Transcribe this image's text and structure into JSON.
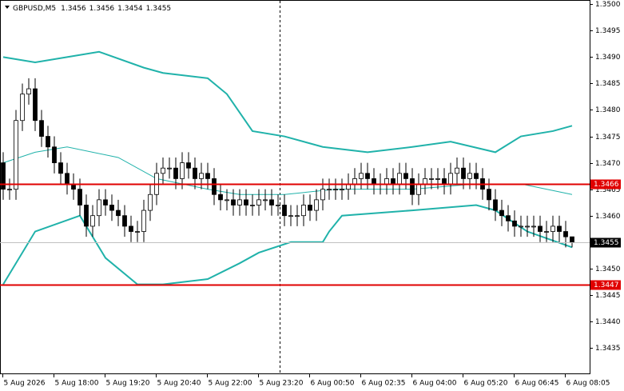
{
  "chart_data": {
    "type": "candlestick",
    "symbol": "GBPUSD,M5",
    "categories": [
      "5 Aug 2026",
      null,
      null,
      null,
      null,
      null,
      null,
      null,
      "5 Aug 18:00",
      null,
      null,
      null,
      null,
      null,
      null,
      null,
      "5 Aug 19:20",
      null,
      null,
      null,
      null,
      null,
      null,
      null,
      "5 Aug 20:40",
      null,
      null,
      null,
      null,
      null,
      null,
      null,
      "5 Aug 22:00",
      null,
      null,
      null,
      null,
      null,
      null,
      null,
      "5 Aug 23:20",
      null,
      null,
      null,
      null,
      null,
      null,
      null,
      "6 Aug 00:50",
      null,
      null,
      null,
      null,
      null,
      null,
      null,
      "6 Aug 02:35",
      null,
      null,
      null,
      null,
      null,
      null,
      null,
      "6 Aug 04:00",
      null,
      null,
      null,
      null,
      null,
      null,
      null,
      "6 Aug 05:20",
      null,
      null,
      null,
      null,
      null,
      null,
      null,
      "6 Aug 06:45",
      null,
      null,
      null,
      null,
      null,
      null,
      null,
      "6 Aug 08:05",
      null
    ],
    "ohlc": [
      [
        1.347,
        1.3472,
        1.3463,
        1.3465
      ],
      [
        1.3465,
        1.3467,
        1.3463,
        1.3465
      ],
      [
        1.3465,
        1.348,
        1.3463,
        1.3478
      ],
      [
        1.3478,
        1.3485,
        1.3476,
        1.3483
      ],
      [
        1.3483,
        1.3486,
        1.3481,
        1.3484
      ],
      [
        1.3484,
        1.3486,
        1.3476,
        1.3478
      ],
      [
        1.3478,
        1.348,
        1.3473,
        1.3475
      ],
      [
        1.3475,
        1.3477,
        1.3471,
        1.3473
      ],
      [
        1.3473,
        1.3475,
        1.3468,
        1.347
      ],
      [
        1.347,
        1.3472,
        1.3466,
        1.3468
      ],
      [
        1.3468,
        1.347,
        1.3464,
        1.3466
      ],
      [
        1.3466,
        1.3468,
        1.3463,
        1.3465
      ],
      [
        1.3465,
        1.3467,
        1.346,
        1.3462
      ],
      [
        1.3462,
        1.3464,
        1.3456,
        1.3458
      ],
      [
        1.3458,
        1.3462,
        1.3456,
        1.346
      ],
      [
        1.346,
        1.3465,
        1.3458,
        1.3463
      ],
      [
        1.3463,
        1.3465,
        1.346,
        1.3462
      ],
      [
        1.3462,
        1.3464,
        1.3459,
        1.3461
      ],
      [
        1.3461,
        1.3463,
        1.3458,
        1.346
      ],
      [
        1.346,
        1.3462,
        1.3456,
        1.3458
      ],
      [
        1.3458,
        1.346,
        1.3455,
        1.3457
      ],
      [
        1.3457,
        1.3459,
        1.3455,
        1.3457
      ],
      [
        1.3457,
        1.3463,
        1.3455,
        1.3461
      ],
      [
        1.3461,
        1.3466,
        1.3459,
        1.3464
      ],
      [
        1.3464,
        1.347,
        1.3462,
        1.3468
      ],
      [
        1.3468,
        1.3471,
        1.3466,
        1.3469
      ],
      [
        1.3469,
        1.3471,
        1.3467,
        1.3469
      ],
      [
        1.3469,
        1.3471,
        1.3465,
        1.3467
      ],
      [
        1.3467,
        1.3472,
        1.3465,
        1.347
      ],
      [
        1.347,
        1.3472,
        1.3467,
        1.3469
      ],
      [
        1.3469,
        1.3471,
        1.3465,
        1.3467
      ],
      [
        1.3467,
        1.347,
        1.3465,
        1.3468
      ],
      [
        1.3468,
        1.347,
        1.3465,
        1.3467
      ],
      [
        1.3467,
        1.3469,
        1.3462,
        1.3464
      ],
      [
        1.3464,
        1.3466,
        1.3461,
        1.3463
      ],
      [
        1.3463,
        1.3465,
        1.3461,
        1.3463
      ],
      [
        1.3463,
        1.3465,
        1.346,
        1.3462
      ],
      [
        1.3462,
        1.3465,
        1.346,
        1.3463
      ],
      [
        1.3463,
        1.3465,
        1.346,
        1.3462
      ],
      [
        1.3462,
        1.3464,
        1.346,
        1.3462
      ],
      [
        1.3462,
        1.3465,
        1.346,
        1.3463
      ],
      [
        1.3463,
        1.3465,
        1.3461,
        1.3463
      ],
      [
        1.3463,
        1.3465,
        1.346,
        1.3462
      ],
      [
        1.3462,
        1.3464,
        1.346,
        1.3462
      ],
      [
        1.3462,
        1.3464,
        1.3458,
        1.346
      ],
      [
        1.346,
        1.3462,
        1.3458,
        1.346
      ],
      [
        1.346,
        1.3462,
        1.3458,
        1.346
      ],
      [
        1.346,
        1.3464,
        1.3458,
        1.3462
      ],
      [
        1.3462,
        1.3464,
        1.3459,
        1.3461
      ],
      [
        1.3461,
        1.3465,
        1.3459,
        1.3463
      ],
      [
        1.3463,
        1.3467,
        1.3461,
        1.3465
      ],
      [
        1.3465,
        1.3467,
        1.3463,
        1.3465
      ],
      [
        1.3465,
        1.3467,
        1.3463,
        1.3465
      ],
      [
        1.3465,
        1.3467,
        1.3463,
        1.3465
      ],
      [
        1.3465,
        1.3468,
        1.3463,
        1.3466
      ],
      [
        1.3466,
        1.3469,
        1.3464,
        1.3467
      ],
      [
        1.3467,
        1.347,
        1.3465,
        1.3468
      ],
      [
        1.3468,
        1.347,
        1.3465,
        1.3467
      ],
      [
        1.3467,
        1.3469,
        1.3464,
        1.3466
      ],
      [
        1.3466,
        1.3468,
        1.3464,
        1.3466
      ],
      [
        1.3466,
        1.3469,
        1.3464,
        1.3467
      ],
      [
        1.3467,
        1.3469,
        1.3464,
        1.3466
      ],
      [
        1.3466,
        1.347,
        1.3464,
        1.3468
      ],
      [
        1.3468,
        1.347,
        1.3465,
        1.3467
      ],
      [
        1.3467,
        1.3469,
        1.3462,
        1.3464
      ],
      [
        1.3464,
        1.3468,
        1.3462,
        1.3466
      ],
      [
        1.3466,
        1.3469,
        1.3464,
        1.3467
      ],
      [
        1.3467,
        1.3469,
        1.3465,
        1.3467
      ],
      [
        1.3467,
        1.3469,
        1.3465,
        1.3467
      ],
      [
        1.3467,
        1.3469,
        1.3464,
        1.3466
      ],
      [
        1.3466,
        1.347,
        1.3464,
        1.3468
      ],
      [
        1.3468,
        1.3471,
        1.3466,
        1.3469
      ],
      [
        1.3469,
        1.3471,
        1.3465,
        1.3467
      ],
      [
        1.3467,
        1.347,
        1.3465,
        1.3468
      ],
      [
        1.3468,
        1.347,
        1.3465,
        1.3467
      ],
      [
        1.3467,
        1.3469,
        1.3463,
        1.3465
      ],
      [
        1.3465,
        1.3467,
        1.3461,
        1.3463
      ],
      [
        1.3463,
        1.3465,
        1.3459,
        1.3461
      ],
      [
        1.3461,
        1.3463,
        1.3458,
        1.346
      ],
      [
        1.346,
        1.3462,
        1.3457,
        1.3459
      ],
      [
        1.3459,
        1.3461,
        1.3456,
        1.3458
      ],
      [
        1.3458,
        1.346,
        1.3456,
        1.3458
      ],
      [
        1.3458,
        1.346,
        1.3456,
        1.3458
      ],
      [
        1.3458,
        1.346,
        1.3456,
        1.3458
      ],
      [
        1.3458,
        1.346,
        1.3455,
        1.3457
      ],
      [
        1.3457,
        1.3459,
        1.3455,
        1.3457
      ],
      [
        1.3457,
        1.346,
        1.3455,
        1.3458
      ],
      [
        1.3458,
        1.346,
        1.3455,
        1.3457
      ],
      [
        1.3457,
        1.3459,
        1.3454,
        1.3456
      ],
      [
        1.3456,
        1.3456,
        1.3454,
        1.3455
      ]
    ],
    "bands": [
      {
        "color": "#20b2aa",
        "x": [
          0,
          5,
          10,
          15,
          22,
          25,
          32,
          35,
          39,
          44,
          50,
          57,
          64,
          70,
          77,
          81,
          86,
          89
        ],
        "values": [
          1.349,
          1.3489,
          1.349,
          1.3491,
          1.3488,
          1.3487,
          1.3486,
          1.3483,
          1.3476,
          1.3475,
          1.3473,
          1.3472,
          1.3473,
          1.3474,
          1.3472,
          1.3475,
          1.3476,
          1.3477
        ]
      },
      {
        "color": "#20b2aa",
        "x": [
          0,
          5,
          10,
          18,
          24,
          32,
          37,
          44,
          52,
          64,
          74,
          81,
          89
        ],
        "values": [
          1.347,
          1.3472,
          1.3473,
          1.3471,
          1.3467,
          1.3465,
          1.3464,
          1.3464,
          1.3465,
          1.3465,
          1.3466,
          1.3466,
          1.3464
        ]
      },
      {
        "color": "#20b2aa",
        "x": [
          0,
          5,
          12,
          16,
          21,
          25,
          32,
          37,
          40,
          45,
          50,
          51,
          53,
          64,
          74,
          77,
          82,
          89
        ],
        "values": [
          1.3447,
          1.3457,
          1.346,
          1.3452,
          1.3447,
          1.3447,
          1.3448,
          1.3451,
          1.3453,
          1.3455,
          1.3455,
          1.3457,
          1.346,
          1.3461,
          1.3462,
          1.3461,
          1.3457,
          1.3454
        ]
      }
    ],
    "levels": [
      {
        "value": 1.3466,
        "color": "#e00000"
      },
      {
        "value": 1.3447,
        "color": "#e00000"
      }
    ],
    "ylim": [
      1.343,
      1.35008
    ],
    "yticks": [
      {
        "value": 1.35,
        "label": "1.3500"
      },
      {
        "value": 1.3495,
        "label": "1.3495"
      },
      {
        "value": 1.349,
        "label": "1.3490"
      },
      {
        "value": 1.3485,
        "label": "1.3485"
      },
      {
        "value": 1.348,
        "label": "1.3480"
      },
      {
        "value": 1.3475,
        "label": "1.3475"
      },
      {
        "value": 1.347,
        "label": "1.3470"
      },
      {
        "value": 1.3465,
        "label": "1.3465"
      },
      {
        "value": 1.346,
        "label": "1.3460"
      },
      {
        "value": 1.3455,
        "label": "1.3455"
      },
      {
        "value": 1.345,
        "label": "1.3450"
      },
      {
        "value": 1.3445,
        "label": "1.3445"
      },
      {
        "value": 1.344,
        "label": "1.3440"
      },
      {
        "value": 1.3435,
        "label": "1.3435"
      }
    ]
  }
}
